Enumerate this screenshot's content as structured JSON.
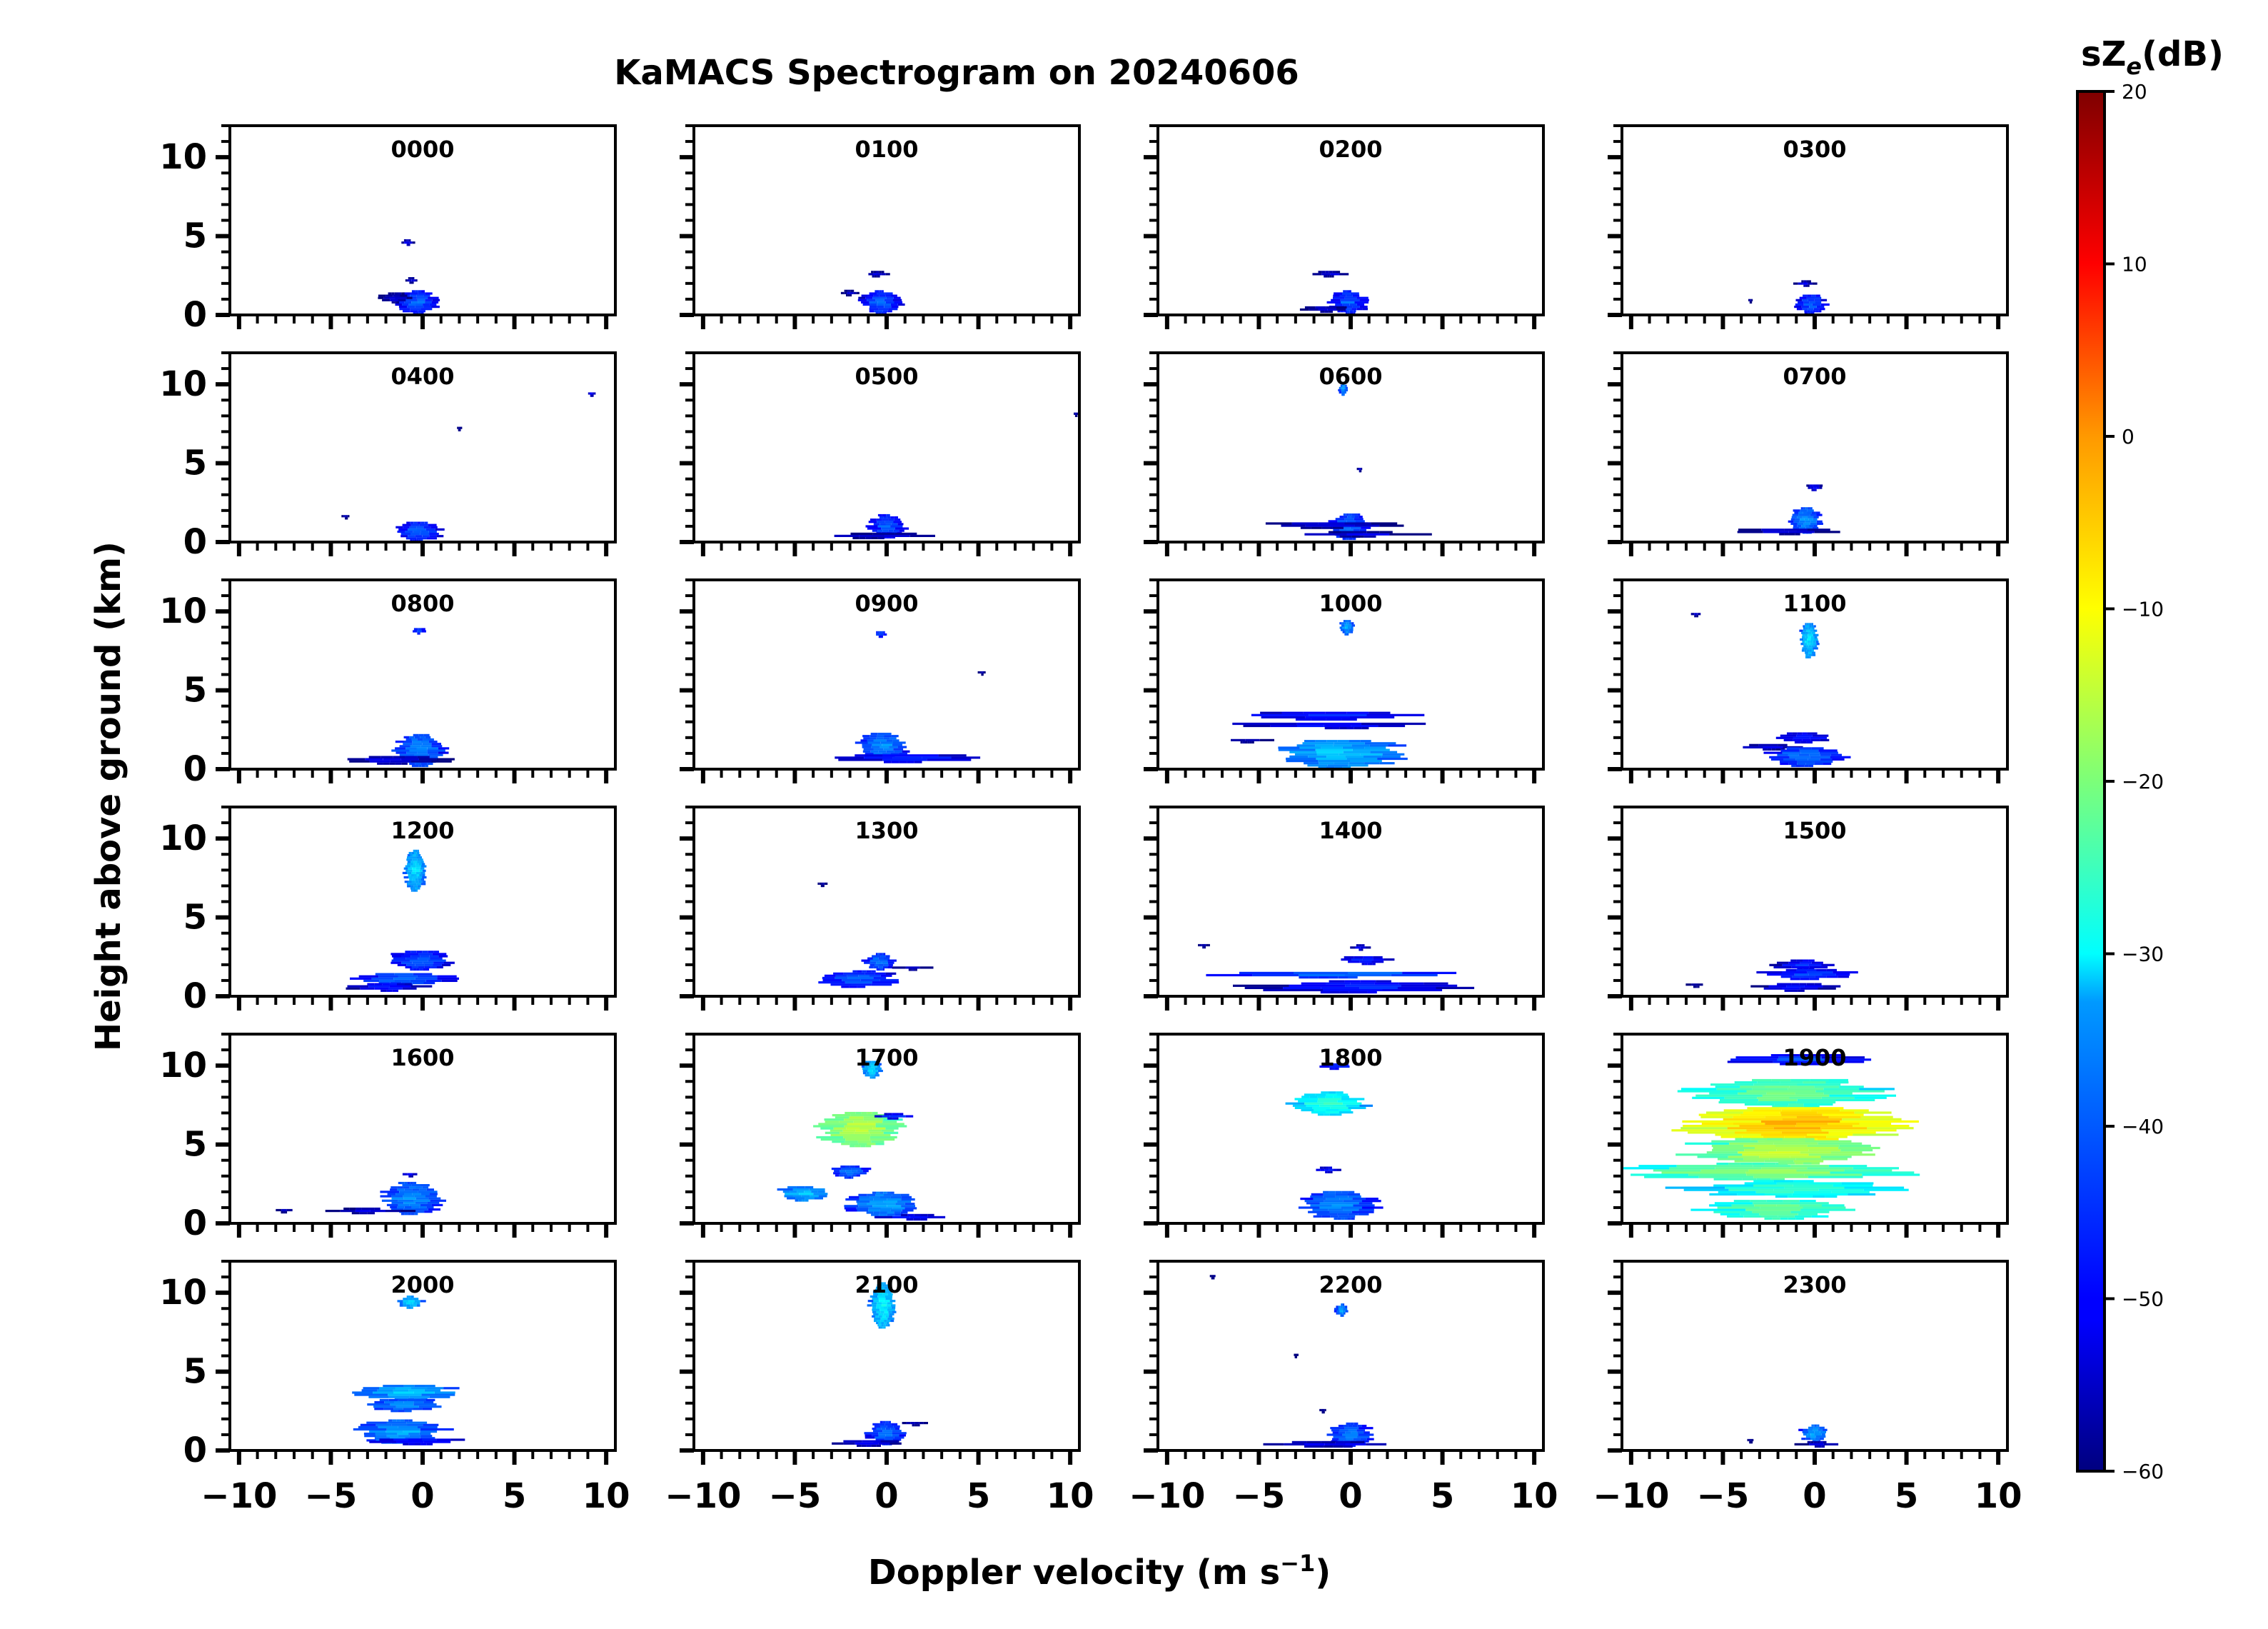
{
  "chart_data": {
    "type": "heatmap",
    "title": "KaMACS Spectrogram on 20240606",
    "xlabel": "Doppler velocity (m s⁻¹)",
    "ylabel": "Height above ground (km)",
    "xlim": [
      -10.5,
      10.5
    ],
    "ylim": [
      0,
      12
    ],
    "x_ticks": [
      "−10",
      "−5",
      "0",
      "5",
      "10"
    ],
    "y_ticks": [
      "0",
      "5",
      "10"
    ],
    "colorbar": {
      "label": "sZₑ(dB)",
      "min": -60,
      "max": 20,
      "ticks": [
        "−60",
        "−50",
        "−40",
        "−30",
        "−20",
        "−10",
        "0",
        "10",
        "20"
      ]
    },
    "panels": [
      {
        "label": "0000",
        "features": [
          {
            "v": -0.8,
            "dv": 0.4,
            "h": 4.6,
            "dh": 0.15,
            "db": -50
          },
          {
            "v": -0.6,
            "dv": 0.4,
            "h": 2.2,
            "dh": 0.15,
            "db": -52
          },
          {
            "v": -0.3,
            "dv": 1.4,
            "h": 0.8,
            "dh": 0.7,
            "db": -42
          },
          {
            "v": -1.5,
            "dv": 1.0,
            "h": 1.1,
            "dh": 0.3,
            "db": -52
          }
        ]
      },
      {
        "label": "0100",
        "features": [
          {
            "v": -0.5,
            "dv": 0.8,
            "h": 2.6,
            "dh": 0.15,
            "db": -52
          },
          {
            "v": -0.3,
            "dv": 1.3,
            "h": 0.8,
            "dh": 0.7,
            "db": -42
          },
          {
            "v": -2.0,
            "dv": 0.6,
            "h": 1.4,
            "dh": 0.15,
            "db": -54
          }
        ]
      },
      {
        "label": "0200",
        "features": [
          {
            "v": -1.2,
            "dv": 1.2,
            "h": 2.6,
            "dh": 0.15,
            "db": -52
          },
          {
            "v": -0.1,
            "dv": 1.2,
            "h": 0.8,
            "dh": 0.7,
            "db": -42
          },
          {
            "v": -1.5,
            "dv": 1.6,
            "h": 0.4,
            "dh": 0.2,
            "db": -52
          }
        ]
      },
      {
        "label": "0300",
        "features": [
          {
            "v": -0.5,
            "dv": 0.7,
            "h": 2.0,
            "dh": 0.15,
            "db": -52
          },
          {
            "v": -0.2,
            "dv": 1.0,
            "h": 0.7,
            "dh": 0.6,
            "db": -42
          },
          {
            "v": -3.5,
            "dv": 0.2,
            "h": 0.9,
            "dh": 0.1,
            "db": -54
          }
        ]
      },
      {
        "label": "0400",
        "features": [
          {
            "v": 9.2,
            "dv": 0.3,
            "h": 9.4,
            "dh": 0.12,
            "db": -50
          },
          {
            "v": 2.0,
            "dv": 0.2,
            "h": 7.2,
            "dh": 0.1,
            "db": -54
          },
          {
            "v": -4.2,
            "dv": 0.3,
            "h": 1.6,
            "dh": 0.1,
            "db": -54
          },
          {
            "v": -0.2,
            "dv": 1.4,
            "h": 0.7,
            "dh": 0.6,
            "db": -42
          }
        ]
      },
      {
        "label": "0500",
        "features": [
          {
            "v": 10.3,
            "dv": 0.2,
            "h": 8.1,
            "dh": 0.1,
            "db": -54
          },
          {
            "v": 0.0,
            "dv": 1.2,
            "h": 1.0,
            "dh": 0.7,
            "db": -42
          },
          {
            "v": -0.5,
            "dv": 4.0,
            "h": 0.4,
            "dh": 0.15,
            "db": -52
          }
        ]
      },
      {
        "label": "0600",
        "features": [
          {
            "v": -0.4,
            "dv": 0.3,
            "h": 9.7,
            "dh": 0.35,
            "db": -36
          },
          {
            "v": 0.5,
            "dv": 0.2,
            "h": 4.6,
            "dh": 0.1,
            "db": -52
          },
          {
            "v": -0.1,
            "dv": 1.3,
            "h": 1.0,
            "dh": 0.8,
            "db": -40
          },
          {
            "v": -1.0,
            "dv": 5.0,
            "h": 1.1,
            "dh": 0.2,
            "db": -52
          },
          {
            "v": 0.5,
            "dv": 4.0,
            "h": 0.5,
            "dh": 0.15,
            "db": -52
          }
        ]
      },
      {
        "label": "0700",
        "features": [
          {
            "v": 0.0,
            "dv": 0.5,
            "h": 3.5,
            "dh": 0.2,
            "db": -48
          },
          {
            "v": -0.5,
            "dv": 1.1,
            "h": 1.4,
            "dh": 0.8,
            "db": -38
          },
          {
            "v": -1.5,
            "dv": 3.0,
            "h": 0.7,
            "dh": 0.2,
            "db": -52
          }
        ]
      },
      {
        "label": "0800",
        "features": [
          {
            "v": -0.2,
            "dv": 0.4,
            "h": 8.8,
            "dh": 0.2,
            "db": -42
          },
          {
            "v": -0.2,
            "dv": 1.6,
            "h": 1.2,
            "dh": 1.0,
            "db": -38
          },
          {
            "v": -1.5,
            "dv": 3.2,
            "h": 0.6,
            "dh": 0.25,
            "db": -50
          }
        ]
      },
      {
        "label": "0900",
        "features": [
          {
            "v": -0.3,
            "dv": 0.4,
            "h": 8.6,
            "dh": 0.2,
            "db": -42
          },
          {
            "v": 5.2,
            "dv": 0.3,
            "h": 6.1,
            "dh": 0.1,
            "db": -54
          },
          {
            "v": -0.2,
            "dv": 1.6,
            "h": 1.5,
            "dh": 0.8,
            "db": -38
          },
          {
            "v": 1.0,
            "dv": 4.5,
            "h": 0.7,
            "dh": 0.25,
            "db": -46
          }
        ]
      },
      {
        "label": "1000",
        "features": [
          {
            "v": -0.2,
            "dv": 0.5,
            "h": 9.0,
            "dh": 0.45,
            "db": -36
          },
          {
            "v": -1.0,
            "dv": 6.2,
            "h": 3.4,
            "dh": 0.25,
            "db": -46
          },
          {
            "v": -1.0,
            "dv": 6.5,
            "h": 2.8,
            "dh": 0.2,
            "db": -48
          },
          {
            "v": -0.5,
            "dv": 4.5,
            "h": 1.0,
            "dh": 0.9,
            "db": -34
          },
          {
            "v": -5.5,
            "dv": 1.4,
            "h": 1.8,
            "dh": 0.1,
            "db": -52
          }
        ]
      },
      {
        "label": "1100",
        "features": [
          {
            "v": -6.5,
            "dv": 0.4,
            "h": 9.8,
            "dh": 0.1,
            "db": -52
          },
          {
            "v": -0.3,
            "dv": 0.6,
            "h": 8.2,
            "dh": 1.1,
            "db": -32
          },
          {
            "v": -0.6,
            "dv": 1.8,
            "h": 2.0,
            "dh": 0.3,
            "db": -46
          },
          {
            "v": -2.5,
            "dv": 2.5,
            "h": 1.4,
            "dh": 0.15,
            "db": -52
          },
          {
            "v": -0.5,
            "dv": 2.4,
            "h": 0.8,
            "dh": 0.6,
            "db": -40
          }
        ]
      },
      {
        "label": "1200",
        "features": [
          {
            "v": -0.4,
            "dv": 0.7,
            "h": 8.0,
            "dh": 1.3,
            "db": -32
          },
          {
            "v": -0.1,
            "dv": 2.0,
            "h": 2.3,
            "dh": 0.6,
            "db": -42
          },
          {
            "v": -1.0,
            "dv": 3.0,
            "h": 1.1,
            "dh": 0.4,
            "db": -40
          },
          {
            "v": -2.0,
            "dv": 2.4,
            "h": 0.6,
            "dh": 0.25,
            "db": -46
          }
        ]
      },
      {
        "label": "1300",
        "features": [
          {
            "v": -3.5,
            "dv": 0.3,
            "h": 7.1,
            "dh": 0.1,
            "db": -54
          },
          {
            "v": -0.4,
            "dv": 1.0,
            "h": 2.2,
            "dh": 0.5,
            "db": -40
          },
          {
            "v": -1.5,
            "dv": 2.6,
            "h": 1.1,
            "dh": 0.5,
            "db": -42
          },
          {
            "v": 1.5,
            "dv": 1.2,
            "h": 1.8,
            "dh": 0.12,
            "db": -52
          }
        ]
      },
      {
        "label": "1400",
        "features": [
          {
            "v": 0.5,
            "dv": 0.6,
            "h": 3.1,
            "dh": 0.15,
            "db": -50
          },
          {
            "v": 0.8,
            "dv": 1.6,
            "h": 2.3,
            "dh": 0.25,
            "db": -46
          },
          {
            "v": -0.8,
            "dv": 8.0,
            "h": 1.4,
            "dh": 0.2,
            "db": -40
          },
          {
            "v": 0.5,
            "dv": 6.5,
            "h": 0.6,
            "dh": 0.35,
            "db": -46
          },
          {
            "v": -8.0,
            "dv": 0.4,
            "h": 3.2,
            "dh": 0.1,
            "db": -54
          }
        ]
      },
      {
        "label": "1500",
        "features": [
          {
            "v": -0.6,
            "dv": 1.8,
            "h": 2.0,
            "dh": 0.3,
            "db": -46
          },
          {
            "v": -0.3,
            "dv": 3.2,
            "h": 1.4,
            "dh": 0.3,
            "db": -44
          },
          {
            "v": -1.0,
            "dv": 2.5,
            "h": 0.6,
            "dh": 0.25,
            "db": -48
          },
          {
            "v": -6.5,
            "dv": 0.6,
            "h": 0.7,
            "dh": 0.1,
            "db": -54
          }
        ]
      },
      {
        "label": "1600",
        "features": [
          {
            "v": -0.7,
            "dv": 0.6,
            "h": 3.1,
            "dh": 0.12,
            "db": -50
          },
          {
            "v": -0.6,
            "dv": 2.0,
            "h": 1.6,
            "dh": 1.0,
            "db": -38
          },
          {
            "v": -3.0,
            "dv": 2.5,
            "h": 0.8,
            "dh": 0.15,
            "db": -52
          },
          {
            "v": -7.5,
            "dv": 0.6,
            "h": 0.8,
            "dh": 0.1,
            "db": -54
          }
        ]
      },
      {
        "label": "1700",
        "features": [
          {
            "v": -0.8,
            "dv": 0.6,
            "h": 9.8,
            "dh": 0.55,
            "db": -32
          },
          {
            "v": -1.5,
            "dv": 2.6,
            "h": 6.0,
            "dh": 1.1,
            "db": -14
          },
          {
            "v": 0.5,
            "dv": 1.5,
            "h": 6.8,
            "dh": 0.15,
            "db": -46
          },
          {
            "v": -2.0,
            "dv": 1.2,
            "h": 3.3,
            "dh": 0.4,
            "db": -40
          },
          {
            "v": -4.5,
            "dv": 1.6,
            "h": 1.9,
            "dh": 0.45,
            "db": -34
          },
          {
            "v": -0.2,
            "dv": 2.2,
            "h": 1.2,
            "dh": 0.8,
            "db": -36
          },
          {
            "v": 1.5,
            "dv": 2.6,
            "h": 0.4,
            "dh": 0.15,
            "db": -48
          }
        ]
      },
      {
        "label": "1800",
        "features": [
          {
            "v": -0.8,
            "dv": 1.1,
            "h": 10.0,
            "dh": 0.2,
            "db": -44
          },
          {
            "v": -1.2,
            "dv": 2.4,
            "h": 7.6,
            "dh": 0.7,
            "db": -26
          },
          {
            "v": -1.3,
            "dv": 1.0,
            "h": 3.4,
            "dh": 0.15,
            "db": -48
          },
          {
            "v": -0.6,
            "dv": 2.4,
            "h": 1.2,
            "dh": 0.9,
            "db": -38
          }
        ]
      },
      {
        "label": "1900",
        "features": [
          {
            "v": -1.0,
            "dv": 4.5,
            "h": 10.4,
            "dh": 0.3,
            "db": -44
          },
          {
            "v": -1.5,
            "dv": 6.0,
            "h": 8.3,
            "dh": 0.9,
            "db": -20
          },
          {
            "v": -1.0,
            "dv": 7.0,
            "h": 6.3,
            "dh": 1.1,
            "db": -4
          },
          {
            "v": -2.5,
            "dv": 9.0,
            "h": 3.3,
            "dh": 0.5,
            "db": -18
          },
          {
            "v": -1.5,
            "dv": 6.0,
            "h": 4.6,
            "dh": 0.8,
            "db": -14
          },
          {
            "v": -1.0,
            "dv": 7.0,
            "h": 2.2,
            "dh": 0.5,
            "db": -24
          },
          {
            "v": -2.0,
            "dv": 4.5,
            "h": 0.9,
            "dh": 0.6,
            "db": -20
          }
        ]
      },
      {
        "label": "2000",
        "features": [
          {
            "v": -0.6,
            "dv": 0.8,
            "h": 9.4,
            "dh": 0.35,
            "db": -32
          },
          {
            "v": -0.8,
            "dv": 3.4,
            "h": 3.7,
            "dh": 0.45,
            "db": -34
          },
          {
            "v": -1.0,
            "dv": 2.6,
            "h": 2.9,
            "dh": 0.4,
            "db": -38
          },
          {
            "v": -1.2,
            "dv": 2.8,
            "h": 1.2,
            "dh": 0.7,
            "db": -36
          },
          {
            "v": -0.3,
            "dv": 3.2,
            "h": 0.6,
            "dh": 0.2,
            "db": -46
          }
        ]
      },
      {
        "label": "2100",
        "features": [
          {
            "v": -0.2,
            "dv": 0.8,
            "h": 9.2,
            "dh": 1.4,
            "db": -30
          },
          {
            "v": 0.0,
            "dv": 1.2,
            "h": 1.1,
            "dh": 0.7,
            "db": -40
          },
          {
            "v": -1.0,
            "dv": 2.5,
            "h": 0.5,
            "dh": 0.2,
            "db": -50
          },
          {
            "v": 1.5,
            "dv": 0.8,
            "h": 1.7,
            "dh": 0.1,
            "db": -52
          }
        ]
      },
      {
        "label": "2200",
        "features": [
          {
            "v": -7.5,
            "dv": 0.3,
            "h": 11.0,
            "dh": 0.08,
            "db": -54
          },
          {
            "v": -0.5,
            "dv": 0.4,
            "h": 8.9,
            "dh": 0.35,
            "db": -36
          },
          {
            "v": -3.0,
            "dv": 0.2,
            "h": 6.0,
            "dh": 0.08,
            "db": -56
          },
          {
            "v": -1.5,
            "dv": 0.3,
            "h": 2.5,
            "dh": 0.08,
            "db": -54
          },
          {
            "v": 0.0,
            "dv": 1.5,
            "h": 1.0,
            "dh": 0.7,
            "db": -40
          },
          {
            "v": -1.0,
            "dv": 5.0,
            "h": 0.4,
            "dh": 0.15,
            "db": -50
          }
        ]
      },
      {
        "label": "2300",
        "features": [
          {
            "v": 0.0,
            "dv": 0.9,
            "h": 1.1,
            "dh": 0.5,
            "db": -36
          },
          {
            "v": -3.5,
            "dv": 0.3,
            "h": 0.6,
            "dh": 0.08,
            "db": -54
          },
          {
            "v": 0.2,
            "dv": 1.2,
            "h": 0.4,
            "dh": 0.15,
            "db": -50
          }
        ]
      }
    ]
  }
}
